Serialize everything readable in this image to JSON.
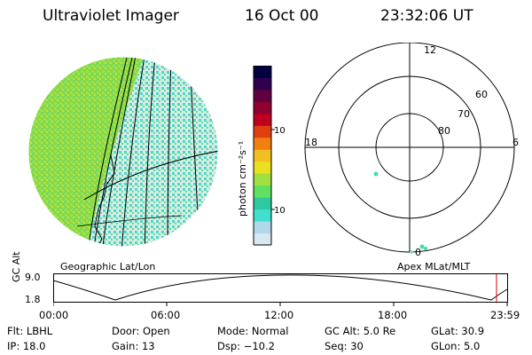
{
  "header": {
    "title": "Ultraviolet Imager",
    "date": "16 Oct 00",
    "time": "23:32:06 UT"
  },
  "colorbar": {
    "unit_label": "photon cm⁻²s⁻¹",
    "ticks": [
      "100",
      "10"
    ],
    "colors": [
      "#d8e8f0",
      "#b0d8e8",
      "#40e0d0",
      "#30c8a0",
      "#60e060",
      "#a0e040",
      "#e8e020",
      "#f0c020",
      "#f08010",
      "#e04010",
      "#c00020",
      "#900030",
      "#600040",
      "#300050",
      "#000040"
    ]
  },
  "polar": {
    "labels": [
      "12",
      "60",
      "70",
      "80",
      "18",
      "6",
      "0"
    ]
  },
  "globe": {
    "label": "Geographic Lat/Lon"
  },
  "apex": {
    "label": "Apex MLat/MLT"
  },
  "altplot": {
    "ylabel": "GC Alt",
    "y_top": "9.0",
    "y_bottom": "1.8",
    "x_ticks": [
      "00:00",
      "06:00",
      "12:00",
      "18:00",
      "23:59"
    ]
  },
  "info": [
    [
      {
        "k": "Flt:",
        "v": "LBHL"
      },
      {
        "k": "Door:",
        "v": "Open"
      },
      {
        "k": "Mode:",
        "v": "Normal"
      },
      {
        "k": "GC Alt:",
        "v": "5.0 Re"
      },
      {
        "k": "GLat:",
        "v": "30.9"
      }
    ],
    [
      {
        "k": "IP:",
        "v": "18.0"
      },
      {
        "k": "Gain:",
        "v": "13"
      },
      {
        "k": "Dsp:",
        "v": "−10.2"
      },
      {
        "k": "Seq:",
        "v": "30"
      },
      {
        "k": "GLon:",
        "v": "5.0"
      }
    ]
  ]
}
